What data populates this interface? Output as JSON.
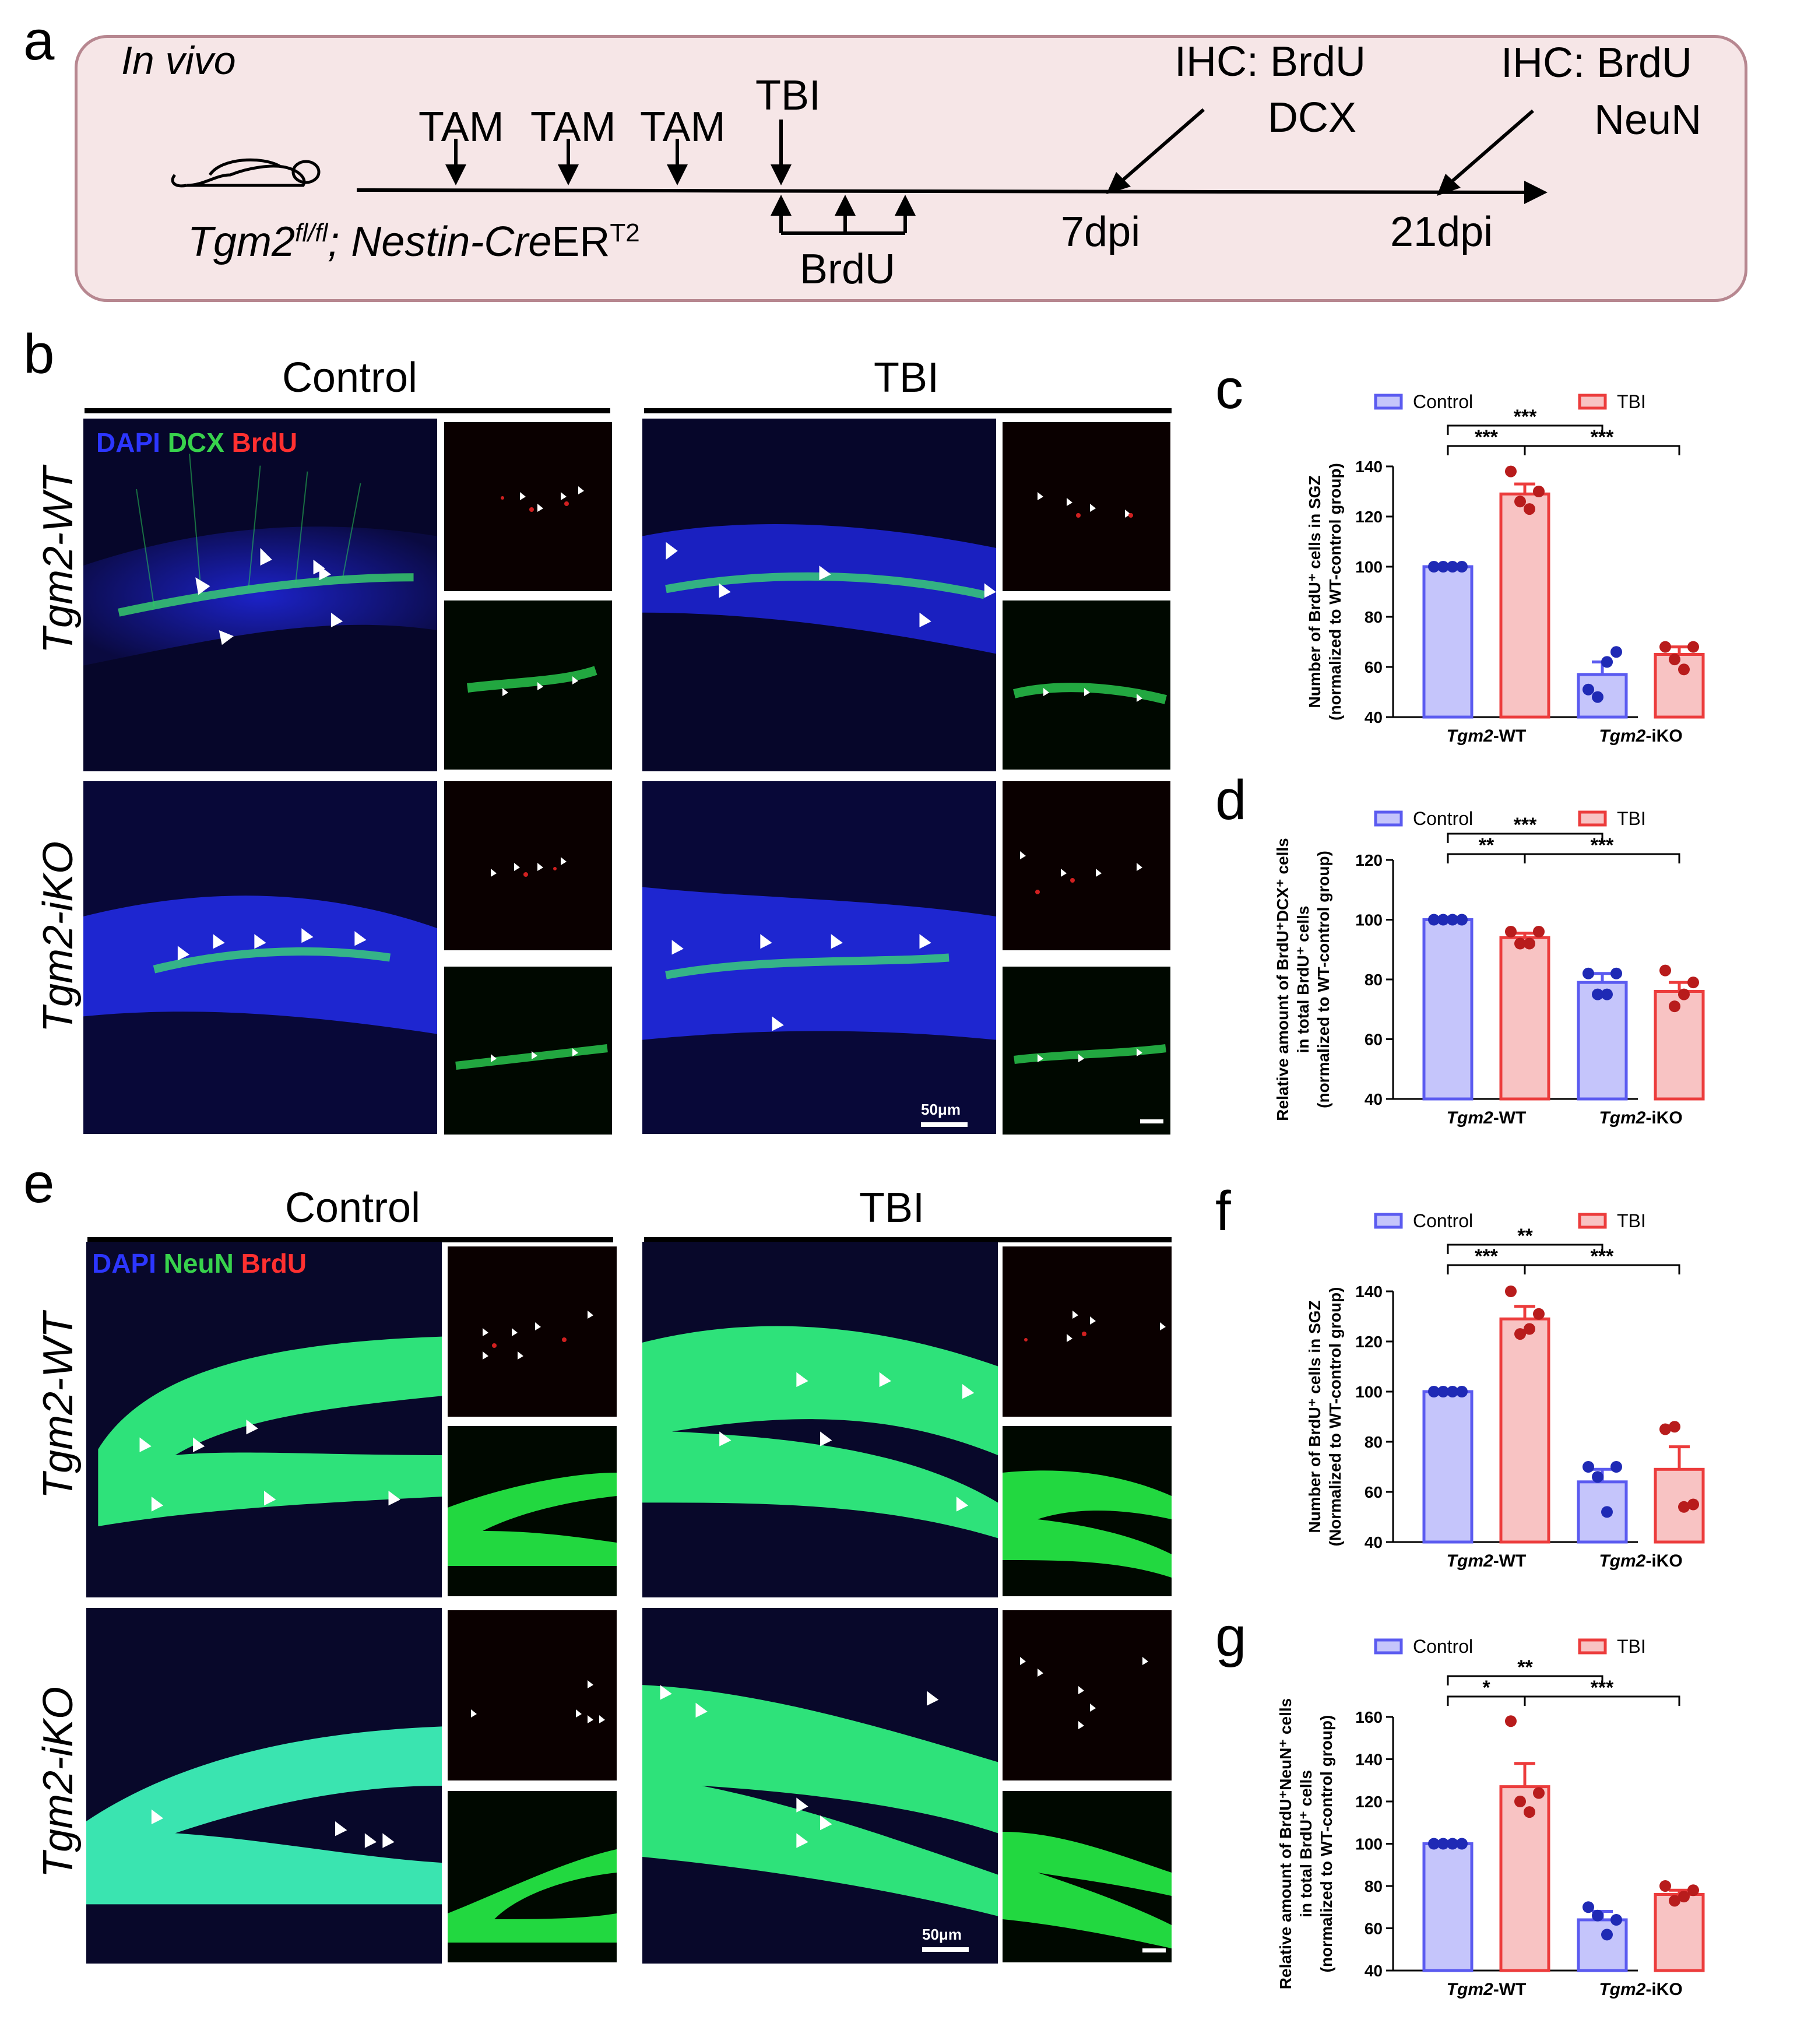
{
  "panels": {
    "a": "a",
    "b": "b",
    "c": "c",
    "d": "d",
    "e": "e",
    "f": "f",
    "g": "g"
  },
  "timeline": {
    "in_vivo": "In vivo",
    "tam1": "TAM",
    "tam2": "TAM",
    "tam3": "TAM",
    "tbi": "TBI",
    "ihc1_line1": "IHC: BrdU",
    "ihc1_line2": "DCX",
    "ihc2_line1": "IHC: BrdU",
    "ihc2_line2": "NeuN",
    "genotype_base": "Tgm2",
    "genotype_sup": "fl/fl",
    "genotype_rest": "; Nestin-Cre",
    "genotype_er": "ER",
    "genotype_t2": "T2",
    "brdu": "BrdU",
    "day7": "7dpi",
    "day21": "21dpi"
  },
  "micro_b": {
    "col_control": "Control",
    "col_tbi": "TBI",
    "row_wt": "Tgm2-WT",
    "row_iko": "Tgm2-iKO",
    "stain_dapi": "DAPI",
    "stain_dcx": "DCX",
    "stain_brdu": "BrdU",
    "scale": "50μm"
  },
  "micro_e": {
    "col_control": "Control",
    "col_tbi": "TBI",
    "row_wt": "Tgm2-WT",
    "row_iko": "Tgm2-iKO",
    "stain_dapi": "DAPI",
    "stain_neun": "NeuN",
    "stain_brdu": "BrdU",
    "scale": "50μm"
  },
  "colors": {
    "control": "#5b5bf0",
    "control_fill": "#c5c5fb",
    "tbi": "#ec3c3c",
    "tbi_fill": "#f8c3c3",
    "control_dot": "#1f2ab5",
    "tbi_dot": "#b81c1c",
    "timeline_bg": "#f6e6e7",
    "timeline_border": "#b78790"
  },
  "chart_data": [
    {
      "id": "c",
      "type": "bar",
      "ylabel_line1": "Number of BrdU⁺ cells in SGZ",
      "ylabel_line2": "(normalized to WT-control group)",
      "categories": [
        "Tgm2-WT",
        "Tgm2-iKO"
      ],
      "series": [
        {
          "name": "Control",
          "values": [
            100,
            57
          ],
          "sem": [
            0,
            5
          ],
          "points": [
            [
              100,
              100,
              100,
              100
            ],
            [
              51,
              48,
              62,
              66
            ]
          ]
        },
        {
          "name": "TBI",
          "values": [
            129,
            65
          ],
          "sem": [
            4,
            3
          ],
          "points": [
            [
              138,
              126,
              123,
              130
            ],
            [
              68,
              63,
              59,
              68
            ]
          ]
        }
      ],
      "ylim": [
        40,
        140
      ],
      "yticks": [
        40,
        60,
        80,
        100,
        120,
        140
      ],
      "significance": [
        "***",
        "***",
        "***"
      ]
    },
    {
      "id": "d",
      "type": "bar",
      "ylabel_line1": "Relative amount of BrdU⁺DCX⁺ cells",
      "ylabel_line2": "in total BrdU⁺ cells",
      "ylabel_line3": "(normalized to WT-control group)",
      "categories": [
        "Tgm2-WT",
        "Tgm2-iKO"
      ],
      "series": [
        {
          "name": "Control",
          "values": [
            100,
            79
          ],
          "sem": [
            0,
            3
          ],
          "points": [
            [
              100,
              100,
              100,
              100
            ],
            [
              82,
              75,
              75,
              82
            ]
          ]
        },
        {
          "name": "TBI",
          "values": [
            94,
            76
          ],
          "sem": [
            1.5,
            3
          ],
          "points": [
            [
              96,
              92,
              92,
              96
            ],
            [
              83,
              71,
              75,
              79
            ]
          ]
        }
      ],
      "ylim": [
        40,
        120
      ],
      "yticks": [
        40,
        60,
        80,
        100,
        120
      ],
      "significance": [
        "***",
        "**",
        "***"
      ]
    },
    {
      "id": "f",
      "type": "bar",
      "ylabel_line1": "Number of BrdU⁺ cells in SGZ",
      "ylabel_line2": "(Normalized to WT-control group)",
      "categories": [
        "Tgm2-WT",
        "Tgm2-iKO"
      ],
      "series": [
        {
          "name": "Control",
          "values": [
            100,
            64
          ],
          "sem": [
            0,
            5
          ],
          "points": [
            [
              100,
              100,
              100,
              100
            ],
            [
              70,
              66,
              52,
              70
            ]
          ]
        },
        {
          "name": "TBI",
          "values": [
            129,
            69
          ],
          "sem": [
            5,
            9
          ],
          "points": [
            [
              140,
              123,
              125,
              131
            ],
            [
              85,
              86,
              54,
              55
            ]
          ]
        }
      ],
      "ylim": [
        40,
        140
      ],
      "yticks": [
        40,
        60,
        80,
        100,
        120,
        140
      ],
      "significance": [
        "**",
        "***",
        "***"
      ]
    },
    {
      "id": "g",
      "type": "bar",
      "ylabel_line1": "Relative amount of BrdU⁺NeuN⁺ cells",
      "ylabel_line2": "in total BrdU⁺ cells",
      "ylabel_line3": "(normalized to WT-control group)",
      "categories": [
        "Tgm2-WT",
        "Tgm2-iKO"
      ],
      "series": [
        {
          "name": "Control",
          "values": [
            100,
            64
          ],
          "sem": [
            0,
            4
          ],
          "points": [
            [
              100,
              100,
              100,
              100
            ],
            [
              70,
              66,
              57,
              64
            ]
          ]
        },
        {
          "name": "TBI",
          "values": [
            127,
            76
          ],
          "sem": [
            11,
            2
          ],
          "points": [
            [
              158,
              120,
              115,
              124
            ],
            [
              80,
              73,
              75,
              78
            ]
          ]
        }
      ],
      "ylim": [
        40,
        160
      ],
      "yticks": [
        40,
        60,
        80,
        100,
        120,
        140,
        160
      ],
      "significance": [
        "**",
        "*",
        "***"
      ]
    }
  ],
  "legend": {
    "control": "Control",
    "tbi": "TBI"
  }
}
